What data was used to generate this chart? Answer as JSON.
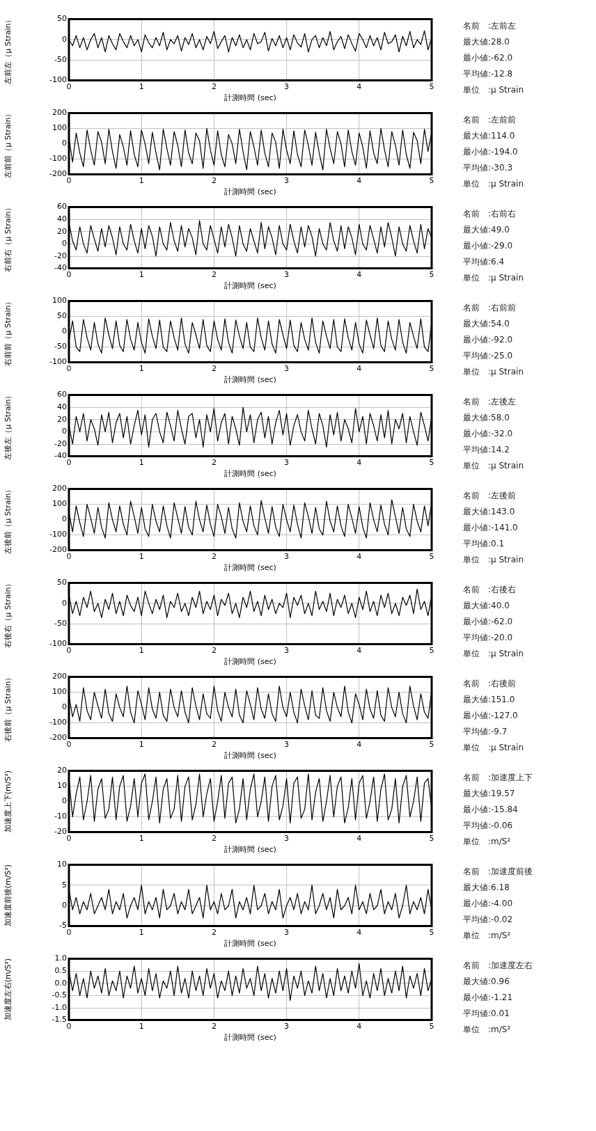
{
  "chart_data": [
    {
      "type": "line",
      "ylabel": "左前左（μ Strain）",
      "xlabel": "計測時間 (sec)",
      "color": "#000000",
      "grid": true,
      "xlim": [
        0,
        5
      ],
      "xticks": [
        0,
        1,
        2,
        3,
        4,
        5
      ],
      "ylim": [
        -100,
        50
      ],
      "yticks": [
        -100,
        -50,
        0,
        50
      ],
      "annotations": [
        "名前　:左前左",
        "最大値:28.0",
        "最小値:-62.0",
        "平均値:-12.8",
        "単位　:μ Strain"
      ],
      "x": [
        0,
        0.05,
        0.1,
        0.15,
        0.2,
        0.25,
        0.3,
        0.35,
        0.4,
        0.45,
        0.5,
        0.55,
        0.6,
        0.65,
        0.7,
        0.75,
        0.8,
        0.85,
        0.9,
        0.95,
        1,
        1.05,
        1.1,
        1.15,
        1.2,
        1.25,
        1.3,
        1.35,
        1.4,
        1.45,
        1.5,
        1.55,
        1.6,
        1.65,
        1.7,
        1.75,
        1.8,
        1.85,
        1.9,
        1.95,
        2,
        2.05,
        2.1,
        2.15,
        2.2,
        2.25,
        2.3,
        2.35,
        2.4,
        2.45,
        2.5,
        2.55,
        2.6,
        2.65,
        2.7,
        2.75,
        2.8,
        2.85,
        2.9,
        2.95,
        3,
        3.05,
        3.1,
        3.15,
        3.2,
        3.25,
        3.3,
        3.35,
        3.4,
        3.45,
        3.5,
        3.55,
        3.6,
        3.65,
        3.7,
        3.75,
        3.8,
        3.85,
        3.9,
        3.95,
        4,
        4.05,
        4.1,
        4.15,
        4.2,
        4.25,
        4.3,
        4.35,
        4.4,
        4.45,
        4.5,
        4.55,
        4.6,
        4.65,
        4.7,
        4.75,
        4.8,
        4.85,
        4.9,
        4.95,
        5
      ],
      "values": [
        0,
        -15,
        10,
        -20,
        5,
        -25,
        0,
        15,
        -20,
        5,
        -30,
        10,
        -10,
        -25,
        15,
        -5,
        -20,
        10,
        -15,
        0,
        -30,
        12,
        -8,
        -20,
        5,
        -15,
        18,
        -25,
        0,
        -10,
        10,
        -28,
        5,
        -12,
        15,
        -20,
        0,
        -25,
        8,
        -10,
        20,
        -22,
        -5,
        10,
        -30,
        5,
        -15,
        12,
        -20,
        0,
        -25,
        15,
        -10,
        -5,
        18,
        -28,
        3,
        -15,
        10,
        -20,
        5,
        -25,
        12,
        -8,
        -18,
        15,
        -30,
        0,
        10,
        -20,
        5,
        -15,
        20,
        -25,
        -5,
        8,
        -22,
        12,
        -10,
        -28,
        15,
        0,
        -20,
        10,
        -15,
        5,
        -25,
        18,
        -10,
        -5,
        12,
        -30,
        8,
        -15,
        20,
        -20,
        0,
        -12,
        22,
        -25,
        5
      ]
    },
    {
      "type": "line",
      "ylabel": "左前前（μ Strain）",
      "xlabel": "計測時間 (sec)",
      "color": "#000000",
      "grid": true,
      "xlim": [
        0,
        5
      ],
      "xticks": [
        0,
        1,
        2,
        3,
        4,
        5
      ],
      "ylim": [
        -200,
        200
      ],
      "yticks": [
        -200,
        -100,
        0,
        100,
        200
      ],
      "annotations": [
        "名前　:左前前",
        "最大値:114.0",
        "最小値:-194.0",
        "平均値:-30.3",
        "単位　:μ Strain"
      ],
      "x": [
        0,
        0.05,
        0.1,
        0.15,
        0.2,
        0.25,
        0.3,
        0.35,
        0.4,
        0.45,
        0.5,
        0.55,
        0.6,
        0.65,
        0.7,
        0.75,
        0.8,
        0.85,
        0.9,
        0.95,
        1,
        1.05,
        1.1,
        1.15,
        1.2,
        1.25,
        1.3,
        1.35,
        1.4,
        1.45,
        1.5,
        1.55,
        1.6,
        1.65,
        1.7,
        1.75,
        1.8,
        1.85,
        1.9,
        1.95,
        2,
        2.05,
        2.1,
        2.15,
        2.2,
        2.25,
        2.3,
        2.35,
        2.4,
        2.45,
        2.5,
        2.55,
        2.6,
        2.65,
        2.7,
        2.75,
        2.8,
        2.85,
        2.9,
        2.95,
        3,
        3.05,
        3.1,
        3.15,
        3.2,
        3.25,
        3.3,
        3.35,
        3.4,
        3.45,
        3.5,
        3.55,
        3.6,
        3.65,
        3.7,
        3.75,
        3.8,
        3.85,
        3.9,
        3.95,
        4,
        4.05,
        4.1,
        4.15,
        4.2,
        4.25,
        4.3,
        4.35,
        4.4,
        4.45,
        4.5,
        4.55,
        4.6,
        4.65,
        4.7,
        4.75,
        4.8,
        4.85,
        4.9,
        4.95,
        5
      ],
      "values": [
        40,
        -120,
        70,
        -60,
        -150,
        90,
        -40,
        -140,
        80,
        10,
        -130,
        95,
        -50,
        -160,
        60,
        -20,
        -140,
        85,
        -70,
        -150,
        90,
        0,
        -130,
        75,
        -60,
        -170,
        95,
        -30,
        -140,
        80,
        -10,
        -150,
        90,
        -60,
        -130,
        70,
        20,
        -160,
        100,
        -40,
        -140,
        85,
        -70,
        -150,
        60,
        0,
        -130,
        95,
        -50,
        -170,
        80,
        -20,
        -140,
        90,
        -60,
        -150,
        70,
        10,
        -160,
        95,
        -40,
        -130,
        85,
        -70,
        -150,
        90,
        -10,
        -140,
        75,
        -60,
        -170,
        95,
        -30,
        -130,
        80,
        0,
        -150,
        90,
        -50,
        -140,
        70,
        -20,
        -160,
        85,
        -60,
        -130,
        100,
        -40,
        -150,
        80,
        -10,
        -140,
        90,
        -70,
        -160,
        75,
        20,
        -130,
        95,
        -50,
        80
      ]
    },
    {
      "type": "line",
      "ylabel": "右前右（μ Strain）",
      "xlabel": "計測時間 (sec)",
      "color": "#000000",
      "grid": true,
      "xlim": [
        0,
        5
      ],
      "xticks": [
        0,
        1,
        2,
        3,
        4,
        5
      ],
      "ylim": [
        -40,
        60
      ],
      "yticks": [
        -40,
        -20,
        0,
        20,
        40,
        60
      ],
      "annotations": [
        "名前　:右前右",
        "最大値:49.0",
        "最小値:-29.0",
        "平均値:6.4",
        "単位　:μ Strain"
      ],
      "x": [
        0,
        0.05,
        0.1,
        0.15,
        0.2,
        0.25,
        0.3,
        0.35,
        0.4,
        0.45,
        0.5,
        0.55,
        0.6,
        0.65,
        0.7,
        0.75,
        0.8,
        0.85,
        0.9,
        0.95,
        1,
        1.05,
        1.1,
        1.15,
        1.2,
        1.25,
        1.3,
        1.35,
        1.4,
        1.45,
        1.5,
        1.55,
        1.6,
        1.65,
        1.7,
        1.75,
        1.8,
        1.85,
        1.9,
        1.95,
        2,
        2.05,
        2.1,
        2.15,
        2.2,
        2.25,
        2.3,
        2.35,
        2.4,
        2.45,
        2.5,
        2.55,
        2.6,
        2.65,
        2.7,
        2.75,
        2.8,
        2.85,
        2.9,
        2.95,
        3,
        3.05,
        3.1,
        3.15,
        3.2,
        3.25,
        3.3,
        3.35,
        3.4,
        3.45,
        3.5,
        3.55,
        3.6,
        3.65,
        3.7,
        3.75,
        3.8,
        3.85,
        3.9,
        3.95,
        4,
        4.05,
        4.1,
        4.15,
        4.2,
        4.25,
        4.3,
        4.35,
        4.4,
        4.45,
        4.5,
        4.55,
        4.6,
        4.65,
        4.7,
        4.75,
        4.8,
        4.85,
        4.9,
        4.95,
        5
      ],
      "values": [
        35,
        5,
        -10,
        28,
        0,
        -15,
        30,
        8,
        -12,
        25,
        -5,
        30,
        10,
        -18,
        28,
        0,
        -10,
        32,
        5,
        -15,
        25,
        -8,
        30,
        12,
        -20,
        28,
        0,
        -10,
        35,
        5,
        -12,
        30,
        -5,
        25,
        10,
        -18,
        38,
        0,
        -10,
        30,
        8,
        -15,
        28,
        -5,
        32,
        10,
        -20,
        30,
        0,
        -12,
        25,
        5,
        -15,
        35,
        -8,
        28,
        10,
        -18,
        30,
        0,
        -10,
        32,
        5,
        -15,
        28,
        -5,
        30,
        12,
        -20,
        25,
        0,
        -10,
        35,
        5,
        -12,
        30,
        -8,
        28,
        10,
        -18,
        32,
        0,
        -10,
        30,
        8,
        -15,
        28,
        -5,
        35,
        10,
        -20,
        28,
        0,
        -12,
        30,
        5,
        -15,
        32,
        -8,
        25,
        10
      ]
    },
    {
      "type": "line",
      "ylabel": "右前前（μ Strain）",
      "xlabel": "計測時間 (sec)",
      "color": "#000000",
      "grid": true,
      "xlim": [
        0,
        5
      ],
      "xticks": [
        0,
        1,
        2,
        3,
        4,
        5
      ],
      "ylim": [
        -100,
        100
      ],
      "yticks": [
        -100,
        -50,
        0,
        50,
        100
      ],
      "annotations": [
        "名前　:右前前",
        "最大値:54.0",
        "最小値:-92.0",
        "平均値:-25.0",
        "単位　:μ Strain"
      ],
      "x": [
        0,
        0.05,
        0.1,
        0.15,
        0.2,
        0.25,
        0.3,
        0.35,
        0.4,
        0.45,
        0.5,
        0.55,
        0.6,
        0.65,
        0.7,
        0.75,
        0.8,
        0.85,
        0.9,
        0.95,
        1,
        1.05,
        1.1,
        1.15,
        1.2,
        1.25,
        1.3,
        1.35,
        1.4,
        1.45,
        1.5,
        1.55,
        1.6,
        1.65,
        1.7,
        1.75,
        1.8,
        1.85,
        1.9,
        1.95,
        2,
        2.05,
        2.1,
        2.15,
        2.2,
        2.25,
        2.3,
        2.35,
        2.4,
        2.45,
        2.5,
        2.55,
        2.6,
        2.65,
        2.7,
        2.75,
        2.8,
        2.85,
        2.9,
        2.95,
        3,
        3.05,
        3.1,
        3.15,
        3.2,
        3.25,
        3.3,
        3.35,
        3.4,
        3.45,
        3.5,
        3.55,
        3.6,
        3.65,
        3.7,
        3.75,
        3.8,
        3.85,
        3.9,
        3.95,
        4,
        4.05,
        4.1,
        4.15,
        4.2,
        4.25,
        4.3,
        4.35,
        4.4,
        4.45,
        4.5,
        4.55,
        4.6,
        4.65,
        4.7,
        4.75,
        4.8,
        4.85,
        4.9,
        4.95,
        5
      ],
      "values": [
        -30,
        35,
        -50,
        -65,
        40,
        -20,
        -60,
        30,
        -40,
        -70,
        45,
        -10,
        -55,
        35,
        -45,
        -65,
        40,
        -25,
        -60,
        30,
        -35,
        -70,
        42,
        -15,
        -55,
        38,
        -50,
        -65,
        35,
        -20,
        -60,
        45,
        -40,
        -70,
        30,
        -10,
        -55,
        40,
        -45,
        -65,
        35,
        -25,
        -60,
        42,
        -35,
        -70,
        38,
        -15,
        -55,
        30,
        -50,
        -65,
        45,
        -20,
        -60,
        35,
        -40,
        -70,
        40,
        -10,
        -55,
        38,
        -45,
        -65,
        30,
        -25,
        -60,
        45,
        -35,
        -70,
        35,
        -15,
        -55,
        40,
        -50,
        -65,
        42,
        -20,
        -60,
        30,
        -40,
        -70,
        38,
        -10,
        -55,
        45,
        -45,
        -65,
        35,
        -25,
        -60,
        40,
        -35,
        -70,
        30,
        -15,
        -55,
        42,
        -50,
        -65,
        30
      ]
    },
    {
      "type": "line",
      "ylabel": "左後左（μ Strain）",
      "xlabel": "計測時間 (sec)",
      "color": "#000000",
      "grid": true,
      "xlim": [
        0,
        5
      ],
      "xticks": [
        0,
        1,
        2,
        3,
        4,
        5
      ],
      "ylim": [
        -40,
        60
      ],
      "yticks": [
        -40,
        -20,
        0,
        20,
        40,
        60
      ],
      "annotations": [
        "名前　:左後左",
        "最大値:58.0",
        "最小値:-32.0",
        "平均値:14.2",
        "単位　:μ Strain"
      ],
      "x": [
        0,
        0.05,
        0.1,
        0.15,
        0.2,
        0.25,
        0.3,
        0.35,
        0.4,
        0.45,
        0.5,
        0.55,
        0.6,
        0.65,
        0.7,
        0.75,
        0.8,
        0.85,
        0.9,
        0.95,
        1,
        1.05,
        1.1,
        1.15,
        1.2,
        1.25,
        1.3,
        1.35,
        1.4,
        1.45,
        1.5,
        1.55,
        1.6,
        1.65,
        1.7,
        1.75,
        1.8,
        1.85,
        1.9,
        1.95,
        2,
        2.05,
        2.1,
        2.15,
        2.2,
        2.25,
        2.3,
        2.35,
        2.4,
        2.45,
        2.5,
        2.55,
        2.6,
        2.65,
        2.7,
        2.75,
        2.8,
        2.85,
        2.9,
        2.95,
        3,
        3.05,
        3.1,
        3.15,
        3.2,
        3.25,
        3.3,
        3.35,
        3.4,
        3.45,
        3.5,
        3.55,
        3.6,
        3.65,
        3.7,
        3.75,
        3.8,
        3.85,
        3.9,
        3.95,
        4,
        4.05,
        4.1,
        4.15,
        4.2,
        4.25,
        4.3,
        4.35,
        4.4,
        4.45,
        4.5,
        4.55,
        4.6,
        4.65,
        4.7,
        4.75,
        4.8,
        4.85,
        4.9,
        4.95,
        5
      ],
      "values": [
        10,
        -20,
        25,
        0,
        30,
        -15,
        20,
        5,
        -22,
        28,
        0,
        32,
        -18,
        15,
        30,
        -10,
        25,
        -20,
        10,
        35,
        -5,
        28,
        -25,
        20,
        30,
        0,
        -18,
        32,
        10,
        -15,
        35,
        5,
        -20,
        25,
        30,
        -10,
        20,
        -25,
        28,
        0,
        38,
        -15,
        15,
        30,
        -20,
        25,
        5,
        -22,
        40,
        0,
        28,
        -18,
        20,
        32,
        -10,
        25,
        -20,
        15,
        35,
        -5,
        30,
        -22,
        10,
        28,
        0,
        -15,
        35,
        5,
        -20,
        30,
        10,
        -25,
        28,
        -5,
        32,
        -15,
        20,
        5,
        -18,
        38,
        0,
        25,
        -20,
        30,
        10,
        -15,
        28,
        -10,
        35,
        -20,
        20,
        5,
        30,
        -18,
        25,
        0,
        -22,
        32,
        10,
        -15,
        25
      ]
    },
    {
      "type": "line",
      "ylabel": "左後前（μ Strain）",
      "xlabel": "計測時間 (sec)",
      "color": "#000000",
      "grid": true,
      "xlim": [
        0,
        5
      ],
      "xticks": [
        0,
        1,
        2,
        3,
        4,
        5
      ],
      "ylim": [
        -200,
        200
      ],
      "yticks": [
        -200,
        -100,
        0,
        100,
        200
      ],
      "annotations": [
        "名前　:左後前",
        "最大値:143.0",
        "最小値:-141.0",
        "平均値:0.1",
        "単位　:μ Strain"
      ],
      "x": [
        0,
        0.05,
        0.1,
        0.15,
        0.2,
        0.25,
        0.3,
        0.35,
        0.4,
        0.45,
        0.5,
        0.55,
        0.6,
        0.65,
        0.7,
        0.75,
        0.8,
        0.85,
        0.9,
        0.95,
        1,
        1.05,
        1.1,
        1.15,
        1.2,
        1.25,
        1.3,
        1.35,
        1.4,
        1.45,
        1.5,
        1.55,
        1.6,
        1.65,
        1.7,
        1.75,
        1.8,
        1.85,
        1.9,
        1.95,
        2,
        2.05,
        2.1,
        2.15,
        2.2,
        2.25,
        2.3,
        2.35,
        2.4,
        2.45,
        2.5,
        2.55,
        2.6,
        2.65,
        2.7,
        2.75,
        2.8,
        2.85,
        2.9,
        2.95,
        3,
        3.05,
        3.1,
        3.15,
        3.2,
        3.25,
        3.3,
        3.35,
        3.4,
        3.45,
        3.5,
        3.55,
        3.6,
        3.65,
        3.7,
        3.75,
        3.8,
        3.85,
        3.9,
        3.95,
        4,
        4.05,
        4.1,
        4.15,
        4.2,
        4.25,
        4.3,
        4.35,
        4.4,
        4.45,
        4.5,
        4.55,
        4.6,
        4.65,
        4.7,
        4.75,
        4.8,
        4.85,
        4.9,
        4.95,
        5
      ],
      "values": [
        50,
        -80,
        90,
        -20,
        -110,
        100,
        10,
        -90,
        80,
        -50,
        -120,
        110,
        0,
        -80,
        90,
        -30,
        -100,
        120,
        20,
        -90,
        80,
        -60,
        -110,
        100,
        -10,
        -80,
        90,
        -40,
        -120,
        110,
        10,
        -90,
        85,
        -50,
        -100,
        120,
        0,
        -80,
        95,
        -30,
        -110,
        100,
        20,
        -90,
        80,
        -60,
        -120,
        110,
        -10,
        -80,
        90,
        -40,
        -100,
        125,
        10,
        -90,
        85,
        -50,
        -110,
        100,
        0,
        -80,
        95,
        -30,
        -120,
        110,
        20,
        -90,
        80,
        -60,
        -100,
        120,
        -10,
        -80,
        90,
        -40,
        -110,
        100,
        10,
        -90,
        85,
        -50,
        -120,
        110,
        0,
        -80,
        95,
        -30,
        -100,
        130,
        20,
        -90,
        80,
        -60,
        -110,
        100,
        -10,
        -80,
        90,
        -40,
        110
      ]
    },
    {
      "type": "line",
      "ylabel": "右後右（μ Strain）",
      "xlabel": "計測時間 (sec)",
      "color": "#000000",
      "grid": true,
      "xlim": [
        0,
        5
      ],
      "xticks": [
        0,
        1,
        2,
        3,
        4,
        5
      ],
      "ylim": [
        -100,
        50
      ],
      "yticks": [
        -100,
        -50,
        0,
        50
      ],
      "annotations": [
        "名前　:右後右",
        "最大値:40.0",
        "最小値:-62.0",
        "平均値:-20.0",
        "単位　:μ Strain"
      ],
      "x": [
        0,
        0.05,
        0.1,
        0.15,
        0.2,
        0.25,
        0.3,
        0.35,
        0.4,
        0.45,
        0.5,
        0.55,
        0.6,
        0.65,
        0.7,
        0.75,
        0.8,
        0.85,
        0.9,
        0.95,
        1,
        1.05,
        1.1,
        1.15,
        1.2,
        1.25,
        1.3,
        1.35,
        1.4,
        1.45,
        1.5,
        1.55,
        1.6,
        1.65,
        1.7,
        1.75,
        1.8,
        1.85,
        1.9,
        1.95,
        2,
        2.05,
        2.1,
        2.15,
        2.2,
        2.25,
        2.3,
        2.35,
        2.4,
        2.45,
        2.5,
        2.55,
        2.6,
        2.65,
        2.7,
        2.75,
        2.8,
        2.85,
        2.9,
        2.95,
        3,
        3.05,
        3.1,
        3.15,
        3.2,
        3.25,
        3.3,
        3.35,
        3.4,
        3.45,
        3.5,
        3.55,
        3.6,
        3.65,
        3.7,
        3.75,
        3.8,
        3.85,
        3.9,
        3.95,
        4,
        4.05,
        4.1,
        4.15,
        4.2,
        4.25,
        4.3,
        4.35,
        4.4,
        4.45,
        4.5,
        4.55,
        4.6,
        4.65,
        4.7,
        4.75,
        4.8,
        4.85,
        4.9,
        4.95,
        5
      ],
      "values": [
        20,
        -25,
        5,
        -30,
        15,
        -10,
        30,
        -20,
        0,
        -35,
        10,
        -15,
        25,
        -25,
        5,
        -30,
        20,
        -5,
        -20,
        15,
        -30,
        30,
        0,
        -25,
        10,
        -15,
        20,
        -35,
        5,
        -10,
        25,
        -20,
        0,
        -30,
        15,
        -10,
        30,
        -25,
        5,
        -15,
        20,
        -30,
        10,
        -5,
        25,
        -25,
        0,
        -35,
        15,
        -10,
        30,
        -20,
        5,
        -30,
        20,
        -15,
        10,
        -25,
        0,
        -10,
        25,
        -35,
        15,
        -5,
        20,
        -25,
        0,
        -30,
        30,
        -15,
        5,
        -20,
        25,
        -30,
        10,
        -10,
        20,
        -25,
        0,
        -35,
        15,
        -15,
        30,
        -20,
        5,
        -30,
        20,
        -10,
        25,
        -25,
        0,
        -30,
        15,
        -5,
        20,
        -25,
        35,
        -15,
        5,
        -30,
        20
      ]
    },
    {
      "type": "line",
      "ylabel": "右後前（μ Strain）",
      "xlabel": "計測時間 (sec)",
      "color": "#000000",
      "grid": true,
      "xlim": [
        0,
        5
      ],
      "xticks": [
        0,
        1,
        2,
        3,
        4,
        5
      ],
      "ylim": [
        -200,
        200
      ],
      "yticks": [
        -200,
        -100,
        0,
        100,
        200
      ],
      "annotations": [
        "名前　:右後前",
        "最大値:151.0",
        "最小値:-127.0",
        "平均値:-9.7",
        "単位　:μ Strain"
      ],
      "x": [
        0,
        0.05,
        0.1,
        0.15,
        0.2,
        0.25,
        0.3,
        0.35,
        0.4,
        0.45,
        0.5,
        0.55,
        0.6,
        0.65,
        0.7,
        0.75,
        0.8,
        0.85,
        0.9,
        0.95,
        1,
        1.05,
        1.1,
        1.15,
        1.2,
        1.25,
        1.3,
        1.35,
        1.4,
        1.45,
        1.5,
        1.55,
        1.6,
        1.65,
        1.7,
        1.75,
        1.8,
        1.85,
        1.9,
        1.95,
        2,
        2.05,
        2.1,
        2.15,
        2.2,
        2.25,
        2.3,
        2.35,
        2.4,
        2.45,
        2.5,
        2.55,
        2.6,
        2.65,
        2.7,
        2.75,
        2.8,
        2.85,
        2.9,
        2.95,
        3,
        3.05,
        3.1,
        3.15,
        3.2,
        3.25,
        3.3,
        3.35,
        3.4,
        3.45,
        3.5,
        3.55,
        3.6,
        3.65,
        3.7,
        3.75,
        3.8,
        3.85,
        3.9,
        3.95,
        4,
        4.05,
        4.1,
        4.15,
        4.2,
        4.25,
        4.3,
        4.35,
        4.4,
        4.45,
        4.5,
        4.55,
        4.6,
        4.65,
        4.7,
        4.75,
        4.8,
        4.85,
        4.9,
        4.95,
        5
      ],
      "values": [
        80,
        -60,
        20,
        -90,
        130,
        -20,
        -80,
        100,
        10,
        -70,
        120,
        -40,
        -90,
        90,
        0,
        -60,
        140,
        -30,
        -100,
        110,
        20,
        -80,
        130,
        -10,
        -70,
        100,
        -50,
        -90,
        120,
        0,
        -60,
        110,
        -30,
        -100,
        130,
        10,
        -80,
        90,
        -40,
        -70,
        140,
        -20,
        -90,
        100,
        0,
        -60,
        120,
        -50,
        -100,
        110,
        20,
        -80,
        130,
        -10,
        -70,
        90,
        -40,
        -90,
        140,
        0,
        -60,
        100,
        -30,
        -100,
        120,
        10,
        -80,
        110,
        -50,
        -70,
        130,
        -20,
        -90,
        100,
        0,
        -60,
        140,
        -30,
        -100,
        90,
        20,
        -80,
        120,
        -10,
        -70,
        110,
        -50,
        -90,
        130,
        0,
        -60,
        100,
        -40,
        -100,
        140,
        10,
        -80,
        90,
        -30,
        -70,
        110
      ]
    },
    {
      "type": "line",
      "ylabel": "加速度上下(m/S²)",
      "xlabel": "計測時間 (sec)",
      "color": "#000000",
      "grid": true,
      "xlim": [
        0,
        5
      ],
      "xticks": [
        0,
        1,
        2,
        3,
        4,
        5
      ],
      "ylim": [
        -20,
        20
      ],
      "yticks": [
        -20,
        -10,
        0,
        10,
        20
      ],
      "annotations": [
        "名前　:加速度上下",
        "最大値:19.57",
        "最小値:-15.84",
        "平均値:-0.06",
        "単位　:m/S²"
      ],
      "x": [
        0,
        0.05,
        0.1,
        0.15,
        0.2,
        0.25,
        0.3,
        0.35,
        0.4,
        0.45,
        0.5,
        0.55,
        0.6,
        0.65,
        0.7,
        0.75,
        0.8,
        0.85,
        0.9,
        0.95,
        1,
        1.05,
        1.1,
        1.15,
        1.2,
        1.25,
        1.3,
        1.35,
        1.4,
        1.45,
        1.5,
        1.55,
        1.6,
        1.65,
        1.7,
        1.75,
        1.8,
        1.85,
        1.9,
        1.95,
        2,
        2.05,
        2.1,
        2.15,
        2.2,
        2.25,
        2.3,
        2.35,
        2.4,
        2.45,
        2.5,
        2.55,
        2.6,
        2.65,
        2.7,
        2.75,
        2.8,
        2.85,
        2.9,
        2.95,
        3,
        3.05,
        3.1,
        3.15,
        3.2,
        3.25,
        3.3,
        3.35,
        3.4,
        3.45,
        3.5,
        3.55,
        3.6,
        3.65,
        3.7,
        3.75,
        3.8,
        3.85,
        3.9,
        3.95,
        4,
        4.05,
        4.1,
        4.15,
        4.2,
        4.25,
        4.3,
        4.35,
        4.4,
        4.45,
        4.5,
        4.55,
        4.6,
        4.65,
        4.7,
        4.75,
        4.8,
        4.85,
        4.9,
        4.95,
        5
      ],
      "values": [
        15,
        -10,
        5,
        16,
        -12,
        0,
        17,
        -13,
        8,
        15,
        -11,
        -5,
        16,
        -12,
        10,
        17,
        -13,
        -3,
        15,
        -10,
        12,
        18,
        -12,
        0,
        16,
        -14,
        8,
        15,
        -11,
        -5,
        17,
        -13,
        10,
        16,
        -12,
        -2,
        18,
        -10,
        5,
        15,
        -13,
        0,
        17,
        -11,
        12,
        16,
        -14,
        -5,
        15,
        -12,
        8,
        18,
        -10,
        0,
        16,
        -13,
        10,
        17,
        -12,
        -3,
        15,
        -14,
        12,
        16,
        -11,
        -5,
        18,
        -12,
        6,
        15,
        -13,
        0,
        17,
        -10,
        10,
        16,
        -14,
        -4,
        15,
        -12,
        12,
        17,
        -11,
        0,
        16,
        -13,
        8,
        18,
        -12,
        -5,
        15,
        -14,
        10,
        17,
        -10,
        0,
        16,
        -13,
        12,
        15,
        -5
      ]
    },
    {
      "type": "line",
      "ylabel": "加速度前後(m/S²)",
      "xlabel": "計測時間 (sec)",
      "color": "#000000",
      "grid": true,
      "xlim": [
        0,
        5
      ],
      "xticks": [
        0,
        1,
        2,
        3,
        4,
        5
      ],
      "ylim": [
        -5,
        10
      ],
      "yticks": [
        -5,
        0,
        5,
        10
      ],
      "annotations": [
        "名前　:加速度前後",
        "最大値:6.18",
        "最小値:-4.00",
        "平均値:-0.02",
        "単位　:m/S²"
      ],
      "x": [
        0,
        0.05,
        0.1,
        0.15,
        0.2,
        0.25,
        0.3,
        0.35,
        0.4,
        0.45,
        0.5,
        0.55,
        0.6,
        0.65,
        0.7,
        0.75,
        0.8,
        0.85,
        0.9,
        0.95,
        1,
        1.05,
        1.1,
        1.15,
        1.2,
        1.25,
        1.3,
        1.35,
        1.4,
        1.45,
        1.5,
        1.55,
        1.6,
        1.65,
        1.7,
        1.75,
        1.8,
        1.85,
        1.9,
        1.95,
        2,
        2.05,
        2.1,
        2.15,
        2.2,
        2.25,
        2.3,
        2.35,
        2.4,
        2.45,
        2.5,
        2.55,
        2.6,
        2.65,
        2.7,
        2.75,
        2.8,
        2.85,
        2.9,
        2.95,
        3,
        3.05,
        3.1,
        3.15,
        3.2,
        3.25,
        3.3,
        3.35,
        3.4,
        3.45,
        3.5,
        3.55,
        3.6,
        3.65,
        3.7,
        3.75,
        3.8,
        3.85,
        3.9,
        3.95,
        4,
        4.05,
        4.1,
        4.15,
        4.2,
        4.25,
        4.3,
        4.35,
        4.4,
        4.45,
        4.5,
        4.55,
        4.6,
        4.65,
        4.7,
        4.75,
        4.8,
        4.85,
        4.9,
        4.95,
        5
      ],
      "values": [
        4,
        -1,
        2,
        -2,
        1,
        -1,
        3,
        -2,
        0,
        2,
        -1,
        4,
        -2,
        1,
        -1,
        3,
        -3,
        0,
        2,
        -1,
        5,
        -2,
        1,
        -1,
        2,
        -3,
        4,
        -1,
        0,
        3,
        -2,
        1,
        -1,
        4,
        -2,
        0,
        2,
        -3,
        5,
        -1,
        1,
        -2,
        3,
        -1,
        0,
        4,
        -3,
        1,
        -1,
        2,
        -2,
        5,
        -1,
        0,
        3,
        -2,
        1,
        -1,
        4,
        -3,
        0,
        2,
        -1,
        3,
        -2,
        1,
        -1,
        5,
        -2,
        0,
        3,
        -1,
        2,
        -3,
        4,
        -1,
        0,
        2,
        -2,
        5,
        -1,
        1,
        -2,
        3,
        -1,
        0,
        4,
        -2,
        1,
        -1,
        3,
        -3,
        0,
        5,
        -2,
        1,
        -1,
        2,
        -2,
        4,
        -1
      ]
    },
    {
      "type": "line",
      "ylabel": "加速度左右(m/S²)",
      "xlabel": "計測時間 (sec)",
      "color": "#000000",
      "grid": true,
      "xlim": [
        0,
        5
      ],
      "xticks": [
        0,
        1,
        2,
        3,
        4,
        5
      ],
      "ylim": [
        -1.5,
        1.0
      ],
      "yticks": [
        {
          "value": -1.5,
          "label": "-1.5"
        },
        {
          "value": -1.0,
          "label": "-1.0"
        },
        -0.5,
        {
          "value": 0,
          "label": "0.0"
        },
        0.5,
        {
          "value": 1.0,
          "label": "1.0"
        }
      ],
      "annotations": [
        "名前　:加速度左右",
        "最大値:0.96",
        "最小値:-1.21",
        "平均値:0.01",
        "単位　:m/S²"
      ],
      "x": [
        0,
        0.05,
        0.1,
        0.15,
        0.2,
        0.25,
        0.3,
        0.35,
        0.4,
        0.45,
        0.5,
        0.55,
        0.6,
        0.65,
        0.7,
        0.75,
        0.8,
        0.85,
        0.9,
        0.95,
        1,
        1.05,
        1.1,
        1.15,
        1.2,
        1.25,
        1.3,
        1.35,
        1.4,
        1.45,
        1.5,
        1.55,
        1.6,
        1.65,
        1.7,
        1.75,
        1.8,
        1.85,
        1.9,
        1.95,
        2,
        2.05,
        2.1,
        2.15,
        2.2,
        2.25,
        2.3,
        2.35,
        2.4,
        2.45,
        2.5,
        2.55,
        2.6,
        2.65,
        2.7,
        2.75,
        2.8,
        2.85,
        2.9,
        2.95,
        3,
        3.05,
        3.1,
        3.15,
        3.2,
        3.25,
        3.3,
        3.35,
        3.4,
        3.45,
        3.5,
        3.55,
        3.6,
        3.65,
        3.7,
        3.75,
        3.8,
        3.85,
        3.9,
        3.95,
        4,
        4.05,
        4.1,
        4.15,
        4.2,
        4.25,
        4.3,
        4.35,
        4.4,
        4.45,
        4.5,
        4.55,
        4.6,
        4.65,
        4.7,
        4.75,
        4.8,
        4.85,
        4.9,
        4.95,
        5
      ],
      "values": [
        0.5,
        -0.3,
        0.4,
        -0.5,
        0.2,
        -0.6,
        0.5,
        -0.2,
        0.3,
        -0.4,
        0.6,
        -0.5,
        0.1,
        -0.3,
        0.5,
        -0.6,
        0.3,
        -0.2,
        0.7,
        -0.4,
        0.2,
        -0.5,
        0.6,
        -0.3,
        0.4,
        -0.6,
        0.1,
        -0.2,
        0.5,
        -0.5,
        0.7,
        -0.4,
        0.2,
        -0.6,
        0.5,
        -0.3,
        0.3,
        -0.5,
        0.6,
        -0.2,
        0.4,
        -0.6,
        0.1,
        -0.3,
        0.5,
        -0.5,
        0.3,
        -0.4,
        0.6,
        -0.2,
        0.2,
        -0.5,
        0.7,
        -0.3,
        0.4,
        -0.6,
        0.2,
        -0.4,
        0.5,
        -0.3,
        0.6,
        -0.7,
        0.3,
        -0.2,
        0.5,
        -0.5,
        0.1,
        -0.4,
        0.7,
        -0.3,
        0.4,
        -0.6,
        0.2,
        -0.5,
        0.6,
        -0.3,
        0.3,
        -0.4,
        0.5,
        -0.2,
        0.8,
        -0.5,
        0.1,
        -0.6,
        0.4,
        -0.3,
        0.6,
        -0.5,
        0.2,
        -0.4,
        0.5,
        -0.3,
        0.7,
        -0.6,
        0.3,
        -0.2,
        0.4,
        -0.5,
        0.6,
        -0.3,
        0.2
      ]
    }
  ]
}
